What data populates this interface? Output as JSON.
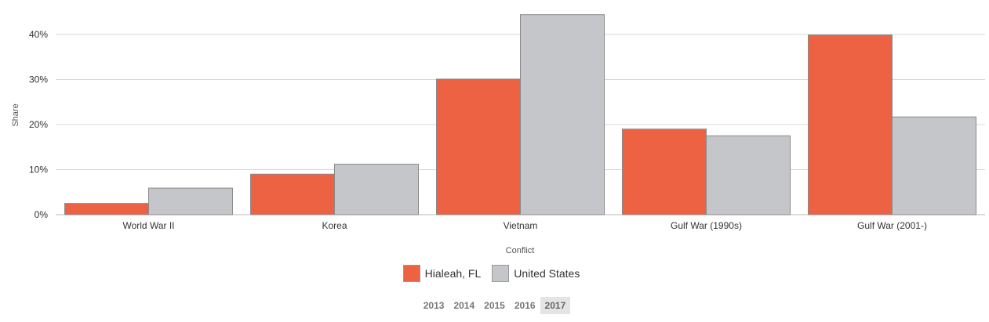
{
  "chart_data": {
    "type": "bar",
    "xlabel": "Conflict",
    "ylabel": "Share",
    "categories": [
      "World War II",
      "Korea",
      "Vietnam",
      "Gulf War (1990s)",
      "Gulf War (2001-)"
    ],
    "series": [
      {
        "name": "Hialeah, FL",
        "color": "#ee6244",
        "values": [
          2.5,
          9.0,
          30.1,
          19.0,
          39.9
        ]
      },
      {
        "name": "United States",
        "color": "#c5c6c9",
        "values": [
          5.9,
          11.2,
          44.4,
          17.5,
          21.7
        ]
      }
    ],
    "ylim": [
      0,
      45
    ],
    "yticks": [
      0,
      10,
      20,
      30,
      40
    ],
    "ytick_suffix": "%",
    "grid": true,
    "legend_position": "bottom-center"
  },
  "year_selector": {
    "years": [
      "2013",
      "2014",
      "2015",
      "2016",
      "2017"
    ],
    "selected": "2017"
  }
}
